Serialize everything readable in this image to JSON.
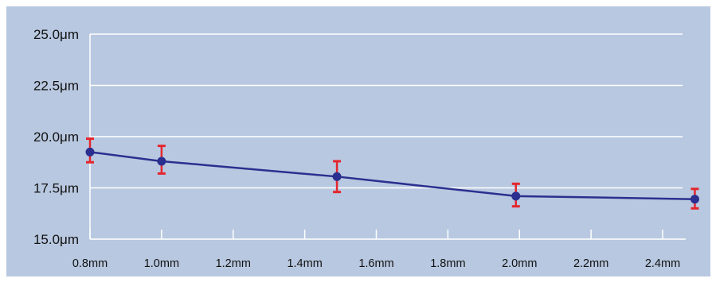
{
  "chart_data": {
    "type": "line",
    "title": "",
    "xlabel": "",
    "ylabel": "",
    "x_ticks": [
      {
        "value": 0.8,
        "label": "0.8mm"
      },
      {
        "value": 1.0,
        "label": "1.0mm"
      },
      {
        "value": 1.2,
        "label": "1.2mm"
      },
      {
        "value": 1.4,
        "label": "1.4mm"
      },
      {
        "value": 1.6,
        "label": "1.6mm"
      },
      {
        "value": 1.8,
        "label": "1.8mm"
      },
      {
        "value": 2.0,
        "label": "2.0mm"
      },
      {
        "value": 2.2,
        "label": "2.2mm"
      },
      {
        "value": 2.4,
        "label": "2.4mm"
      }
    ],
    "y_ticks": [
      {
        "value": 15.0,
        "label": "15.0μm"
      },
      {
        "value": 17.5,
        "label": "17.5μm"
      },
      {
        "value": 20.0,
        "label": "20.0μm"
      },
      {
        "value": 22.5,
        "label": "22.5μm"
      },
      {
        "value": 25.0,
        "label": "25.0μm"
      }
    ],
    "xlim": [
      0.8,
      2.5
    ],
    "ylim": [
      15.0,
      25.0
    ],
    "grid": "horizontal",
    "legend": "none",
    "series": [
      {
        "points": [
          {
            "x": 0.8,
            "y": 19.25,
            "err_low": 18.75,
            "err_high": 19.9
          },
          {
            "x": 1.0,
            "y": 18.8,
            "err_low": 18.2,
            "err_high": 19.55
          },
          {
            "x": 1.49,
            "y": 18.05,
            "err_low": 17.3,
            "err_high": 18.8
          },
          {
            "x": 1.99,
            "y": 17.1,
            "err_low": 16.6,
            "err_high": 17.7
          },
          {
            "x": 2.49,
            "y": 16.95,
            "err_low": 16.5,
            "err_high": 17.45
          }
        ]
      }
    ],
    "colors": {
      "background": "#b8c8e0",
      "grid": "#ffffff",
      "line": "#2b2f8f",
      "marker": "#2b2f8f",
      "error_bar": "#e4262d",
      "text": "#111111"
    }
  }
}
